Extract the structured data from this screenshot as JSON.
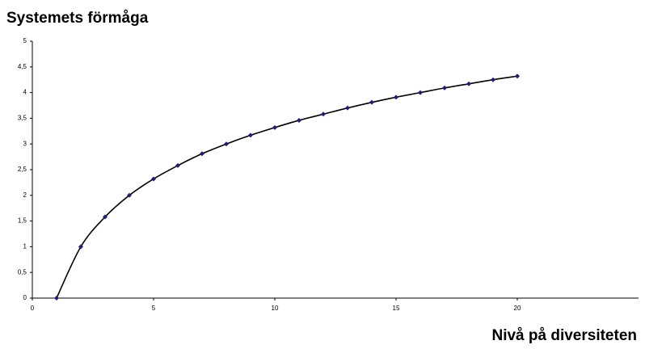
{
  "chart_data": {
    "type": "scatter-line",
    "title": "Systemets förmåga",
    "x_label": "Nivå på diversiteten",
    "x": [
      1,
      2,
      3,
      4,
      5,
      6,
      7,
      8,
      9,
      10,
      11,
      12,
      13,
      14,
      15,
      16,
      17,
      18,
      19,
      20
    ],
    "series": [
      {
        "color": "#1f1f6e",
        "line_color": "#000000",
        "values": [
          0,
          1,
          1.58,
          2,
          2.32,
          2.58,
          2.81,
          3,
          3.17,
          3.32,
          3.46,
          3.58,
          3.7,
          3.81,
          3.91,
          4,
          4.09,
          4.17,
          4.25,
          4.32
        ]
      }
    ],
    "xlim": [
      0,
      25
    ],
    "xticks": [
      0,
      5,
      10,
      15,
      20
    ],
    "ylim": [
      0,
      5
    ],
    "yticks": [
      0,
      {
        "value": 0.5,
        "label": "0,5"
      },
      1,
      {
        "value": 1.5,
        "label": "1,5"
      },
      2,
      {
        "value": 2.5,
        "label": "2,5"
      },
      3,
      {
        "value": 3.5,
        "label": "3,5"
      },
      4,
      {
        "value": 4.5,
        "label": "4,5"
      },
      5
    ],
    "grid": false
  }
}
